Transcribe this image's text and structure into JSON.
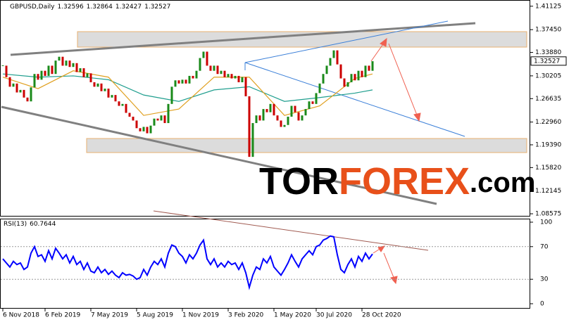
{
  "chart_data": [
    {
      "type": "candlestick",
      "title": "GBPUSD,Daily",
      "quote": [
        1.32596,
        1.32864,
        1.32427,
        1.32527
      ],
      "last_price": 1.32527,
      "categories": [
        "6 Nov 2018",
        null,
        null,
        null,
        null,
        null,
        null,
        null,
        null,
        null,
        null,
        null,
        "6 Feb 2019",
        null,
        null,
        null,
        null,
        null,
        null,
        null,
        null,
        null,
        null,
        null,
        null,
        "7 May 2019",
        null,
        null,
        null,
        null,
        null,
        null,
        null,
        null,
        null,
        null,
        null,
        null,
        "5 Aug 2019",
        null,
        null,
        null,
        null,
        null,
        null,
        null,
        null,
        null,
        null,
        null,
        null,
        "1 Nov 2019",
        null,
        null,
        null,
        null,
        null,
        null,
        null,
        null,
        null,
        null,
        null,
        null,
        "3 Feb 2020",
        null,
        null,
        null,
        null,
        null,
        null,
        null,
        null,
        null,
        null,
        null,
        null,
        "1 May 2020",
        null,
        null,
        null,
        null,
        null,
        null,
        null,
        null,
        null,
        null,
        null,
        "30 Jul 2020",
        null,
        null,
        null,
        null,
        null,
        null,
        null,
        null,
        null,
        null,
        null,
        null,
        "28 Oct 2020",
        null,
        null,
        null
      ],
      "series": [
        {
          "up_color": "#1a8a1a",
          "down_color": "#cc0000",
          "values": [
            1.318,
            1.3,
            1.285,
            1.29,
            1.276,
            1.28,
            1.268,
            1.262,
            1.284,
            1.305,
            1.296,
            1.31,
            1.302,
            1.318,
            1.305,
            1.326,
            1.332,
            1.318,
            1.326,
            1.316,
            1.322,
            1.308,
            1.314,
            1.3,
            1.306,
            1.292,
            1.285,
            1.29,
            1.278,
            1.282,
            1.268,
            1.272,
            1.262,
            1.255,
            1.258,
            1.244,
            1.238,
            1.232,
            1.22,
            1.215,
            1.222,
            1.212,
            1.224,
            1.235,
            1.232,
            1.24,
            1.228,
            1.258,
            1.285,
            1.295,
            1.29,
            1.296,
            1.29,
            1.302,
            1.298,
            1.31,
            1.33,
            1.34,
            1.318,
            1.31,
            1.318,
            1.305,
            1.31,
            1.3,
            1.305,
            1.298,
            1.302,
            1.292,
            1.3,
            1.27,
            1.175,
            1.228,
            1.24,
            1.232,
            1.25,
            1.245,
            1.258,
            1.24,
            1.232,
            1.222,
            1.225,
            1.238,
            1.255,
            1.245,
            1.232,
            1.24,
            1.25,
            1.262,
            1.258,
            1.275,
            1.29,
            1.305,
            1.318,
            1.33,
            1.342,
            1.32,
            1.298,
            1.285,
            1.292,
            1.305,
            1.295,
            1.31,
            1.3,
            1.318,
            1.31,
            1.325
          ]
        }
      ],
      "moving_averages": [
        {
          "color": "#1f9e8e",
          "x": [
            0,
            10,
            20,
            30,
            40,
            50,
            60,
            70,
            80,
            90,
            100,
            105
          ],
          "values": [
            1.305,
            1.3,
            1.302,
            1.296,
            1.272,
            1.262,
            1.28,
            1.285,
            1.262,
            1.268,
            1.275,
            1.28
          ]
        },
        {
          "color": "#e0a020",
          "x": [
            0,
            10,
            20,
            30,
            40,
            50,
            60,
            70,
            80,
            90,
            100,
            105
          ],
          "values": [
            1.3,
            1.282,
            1.31,
            1.3,
            1.24,
            1.25,
            1.3,
            1.3,
            1.24,
            1.255,
            1.298,
            1.305
          ]
        }
      ],
      "ylim": [
        1.0825,
        1.4199
      ],
      "yticks": [
        1.41125,
        {
          "value": 1.3745,
          "label": "1.37450"
        },
        {
          "value": 1.3388,
          "label": "1.33880"
        },
        1.30205,
        1.26635,
        {
          "value": 1.2296,
          "label": "1.22960"
        },
        {
          "value": 1.1939,
          "label": "1.19390"
        },
        {
          "value": 1.1582,
          "label": "1.15820"
        },
        1.12145,
        1.08575
      ],
      "grid": false,
      "watermark": [
        "TOR",
        "FOREX",
        ".com"
      ]
    },
    {
      "type": "line",
      "title": "RSI(13)",
      "last_value": 60.7644,
      "series": [
        {
          "color": "#0000ff",
          "values": [
            55,
            50,
            45,
            52,
            48,
            50,
            42,
            45,
            62,
            70,
            58,
            60,
            52,
            65,
            55,
            68,
            62,
            55,
            60,
            50,
            58,
            48,
            52,
            42,
            50,
            40,
            38,
            45,
            38,
            42,
            36,
            40,
            35,
            32,
            38,
            35,
            36,
            34,
            30,
            32,
            42,
            35,
            45,
            52,
            48,
            55,
            45,
            62,
            72,
            70,
            62,
            58,
            50,
            60,
            55,
            62,
            72,
            78,
            55,
            48,
            55,
            45,
            50,
            45,
            52,
            48,
            50,
            42,
            50,
            38,
            20,
            35,
            45,
            42,
            55,
            50,
            58,
            45,
            40,
            35,
            42,
            50,
            60,
            52,
            45,
            55,
            60,
            65,
            60,
            70,
            72,
            78,
            80,
            83,
            82,
            60,
            42,
            38,
            48,
            55,
            45,
            58,
            52,
            62,
            55,
            61
          ]
        }
      ],
      "ylim": [
        0,
        100
      ],
      "yticks": [
        100,
        70,
        30,
        0
      ],
      "grid": true
    }
  ]
}
